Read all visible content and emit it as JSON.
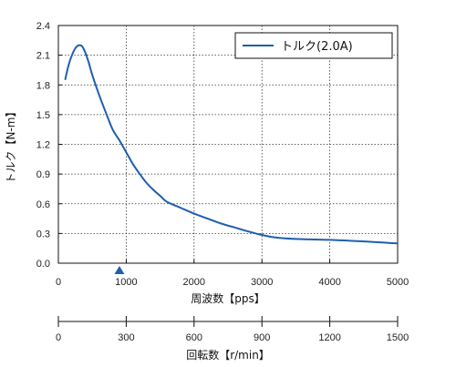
{
  "chart_data": {
    "type": "line",
    "xlabel": "周波数【pps】",
    "ylabel": "トルク【N-m】",
    "xlim": [
      0,
      5000
    ],
    "ylim": [
      0,
      2.4
    ],
    "x_ticks": [
      0,
      1000,
      2000,
      3000,
      4000,
      5000
    ],
    "y_ticks": [
      0.0,
      0.3,
      0.6,
      0.9,
      1.2,
      1.5,
      1.8,
      2.1,
      2.4
    ],
    "x_tick_labels": [
      "0",
      "1000",
      "2000",
      "3000",
      "4000",
      "5000"
    ],
    "y_tick_labels": [
      "0.0",
      "0.3",
      "0.6",
      "0.9",
      "1.2",
      "1.5",
      "1.8",
      "2.1",
      "2.4"
    ],
    "grid": true,
    "legend_position": "top-right",
    "series": [
      {
        "name": "トルク(2.0A)",
        "color": "#1f5fad",
        "x": [
          100,
          150,
          200,
          250,
          300,
          350,
          400,
          450,
          500,
          600,
          700,
          800,
          900,
          1000,
          1100,
          1200,
          1300,
          1400,
          1500,
          1600,
          1800,
          2000,
          2200,
          2400,
          2600,
          2800,
          3000,
          3200,
          3500,
          4000,
          4500,
          5000
        ],
        "values": [
          1.85,
          2.0,
          2.1,
          2.17,
          2.2,
          2.19,
          2.12,
          2.02,
          1.9,
          1.7,
          1.52,
          1.35,
          1.24,
          1.12,
          1.0,
          0.9,
          0.81,
          0.74,
          0.68,
          0.62,
          0.56,
          0.5,
          0.45,
          0.4,
          0.36,
          0.32,
          0.285,
          0.26,
          0.245,
          0.235,
          0.22,
          0.2
        ]
      }
    ],
    "marker": {
      "x": 900,
      "color": "#1f5fad",
      "shape": "triangle-up"
    },
    "secondary_axis": {
      "xlabel": "回転数【r/min】",
      "xlim": [
        0,
        1500
      ],
      "ticks": [
        0,
        300,
        600,
        900,
        1200,
        1500
      ],
      "tick_labels": [
        "0",
        "300",
        "600",
        "900",
        "1200",
        "1500"
      ]
    }
  }
}
